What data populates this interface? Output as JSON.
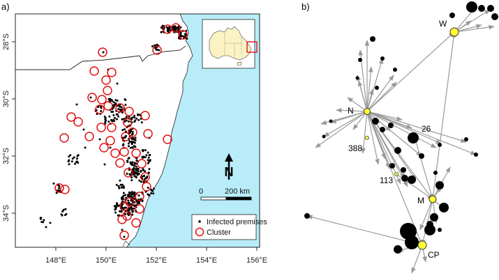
{
  "panel_a": {
    "label": "a)",
    "x_ticks": [
      "148°E",
      "150°E",
      "152°E",
      "154°E",
      "156°E"
    ],
    "y_ticks": [
      "28°S",
      "30°S",
      "32°S",
      "34°S"
    ],
    "scalebar": {
      "start_label": "0",
      "end_label": "200 km"
    },
    "north_label": "N",
    "legend": {
      "infected_label": "Infected premises",
      "cluster_label": "Cluster"
    },
    "colors": {
      "sea": "#b8ecf8",
      "land": "#ffffff",
      "cluster": "#e01010",
      "inset_land": "#fbf3c4"
    }
  },
  "panel_b": {
    "label": "b)",
    "node_labels": [
      "W",
      "N",
      "26",
      "388",
      "113",
      "M",
      "CP"
    ],
    "colors": {
      "highlight_node": "#ffff33",
      "node": "#000000",
      "edge": "#9a9a9a"
    }
  }
}
